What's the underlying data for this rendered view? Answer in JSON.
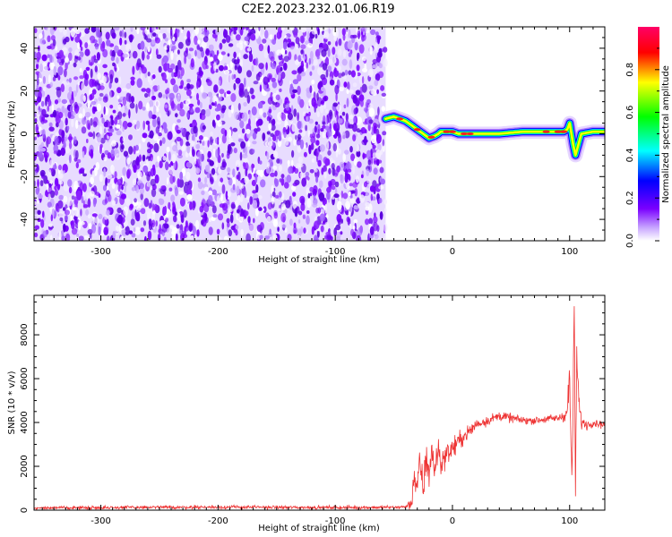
{
  "figure_title": "C2E2.2023.232.01.06.R19",
  "chart_data": [
    {
      "type": "heatmap",
      "panel": "spectrogram",
      "xlabel": "Height of straight line (km)",
      "ylabel": "Frequency (Hz)",
      "xlim": [
        -357,
        130
      ],
      "ylim": [
        -50,
        50
      ],
      "x_ticks": [
        -300,
        -200,
        -100,
        0,
        100
      ],
      "x_tick_labels": [
        "-300",
        "-200",
        "-100",
        "0",
        "100"
      ],
      "y_ticks": [
        -40,
        -20,
        0,
        20,
        40
      ],
      "y_tick_labels": [
        "-40",
        "-20",
        "0",
        "20",
        "40"
      ],
      "noise_region_x": [
        -357,
        -57
      ],
      "signal_ridge": {
        "x": [
          -57,
          -50,
          -45,
          -40,
          -35,
          -30,
          -25,
          -20,
          -15,
          -12,
          -10,
          -5,
          0,
          5,
          10,
          20,
          30,
          40,
          60,
          80,
          90,
          95,
          98,
          100,
          103,
          105,
          110,
          120,
          130
        ],
        "y": [
          7,
          8,
          7,
          6,
          4,
          2,
          0,
          -2,
          -1,
          0,
          1,
          1,
          1,
          0,
          0,
          0,
          0,
          0,
          1,
          1,
          1,
          1,
          2,
          5,
          -5,
          -10,
          0,
          1,
          1
        ]
      },
      "colorbar": {
        "label": "Normalized spectral amplitude",
        "ticks": [
          0.0,
          0.2,
          0.4,
          0.6,
          0.8
        ],
        "tick_labels": [
          "0.0",
          "0.2",
          "0.4",
          "0.6",
          "0.8"
        ],
        "range": [
          0,
          1
        ],
        "colormap": [
          "#ffffff",
          "#7a00ff",
          "#0000ff",
          "#00ffff",
          "#00ff00",
          "#ffff00",
          "#ff0000",
          "#ff0066"
        ]
      }
    },
    {
      "type": "line",
      "panel": "snr",
      "xlabel": "Height of straight line (km)",
      "ylabel": "SNR (10 * v/v)",
      "xlim": [
        -357,
        130
      ],
      "ylim": [
        0,
        9800
      ],
      "x_ticks": [
        -300,
        -200,
        -100,
        0,
        100
      ],
      "x_tick_labels": [
        "-300",
        "-200",
        "-100",
        "0",
        "100"
      ],
      "y_ticks": [
        0,
        2000,
        4000,
        6000,
        8000
      ],
      "y_tick_labels": [
        "0",
        "2000",
        "4000",
        "6000",
        "8000"
      ],
      "series": [
        {
          "color": "#ee3333",
          "x": [
            -357,
            -300,
            -200,
            -100,
            -50,
            -40,
            -35,
            -33,
            -30,
            -28,
            -25,
            -22,
            -20,
            -18,
            -15,
            -12,
            -10,
            -5,
            0,
            5,
            10,
            15,
            20,
            25,
            30,
            35,
            40,
            50,
            60,
            70,
            80,
            90,
            95,
            98,
            100,
            102,
            104,
            105,
            106,
            108,
            110,
            115,
            120,
            130
          ],
          "y": [
            100,
            120,
            140,
            120,
            130,
            150,
            300,
            1600,
            800,
            2200,
            900,
            2600,
            1500,
            2700,
            1800,
            2900,
            2100,
            2600,
            2800,
            3100,
            3400,
            3600,
            3900,
            4000,
            4100,
            4200,
            4300,
            4200,
            4100,
            4100,
            4150,
            4200,
            4300,
            4500,
            6000,
            1200,
            9300,
            600,
            7200,
            4800,
            4000,
            3900,
            4000,
            3900
          ],
          "noise": [
            60,
            80,
            80,
            80,
            80,
            80,
            300,
            900,
            600,
            1000,
            700,
            900,
            700,
            800,
            600,
            700,
            600,
            500,
            500,
            450,
            400,
            350,
            300,
            250,
            250,
            220,
            220,
            200,
            180,
            180,
            180,
            200,
            260,
            400,
            1200,
            600,
            700,
            300,
            900,
            500,
            300,
            220,
            200,
            200
          ]
        }
      ]
    }
  ]
}
